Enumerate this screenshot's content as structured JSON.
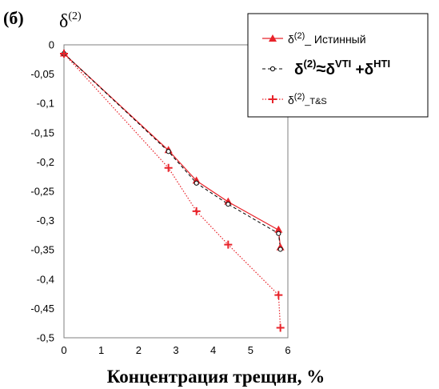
{
  "panel_label": "(б)",
  "chart_data": {
    "type": "line",
    "title": "",
    "ylabel": {
      "base": "δ",
      "sup": "(2)"
    },
    "xlabel": "Концентрация трещин, %",
    "xlim": [
      0,
      6
    ],
    "ylim": [
      -0.5,
      0
    ],
    "x_ticks": [
      "0",
      "1",
      "2",
      "3",
      "4",
      "5",
      "6"
    ],
    "y_ticks": [
      "0",
      "-0,05",
      "-0,1",
      "-0,15",
      "-0,2",
      "-0,25",
      "-0,3",
      "-0,35",
      "-0,4",
      "-0,45",
      "-0,5"
    ],
    "grid": false,
    "legend_position": "top-right",
    "series": [
      {
        "key": "true",
        "legend": {
          "base": "δ",
          "sup": "(2)",
          "rest": "_ Истинный"
        },
        "color": "#e8232a",
        "marker": "triangle",
        "line": "solid",
        "points": [
          [
            0,
            -0.015
          ],
          [
            2.8,
            -0.18
          ],
          [
            3.55,
            -0.232
          ],
          [
            4.4,
            -0.268
          ],
          [
            5.75,
            -0.316
          ],
          [
            5.8,
            -0.346
          ]
        ]
      },
      {
        "key": "approx",
        "legend": {
          "base": "δ",
          "sup": "(2)",
          "approx": "≈",
          "d1": "δ",
          "sup1": "VTI",
          "plus": " +",
          "d2": "δ",
          "sup2": "HTI"
        },
        "color": "#000000",
        "marker": "circle",
        "line": "dashed",
        "points": [
          [
            0,
            -0.015
          ],
          [
            2.8,
            -0.182
          ],
          [
            3.55,
            -0.236
          ],
          [
            4.4,
            -0.272
          ],
          [
            5.75,
            -0.322
          ],
          [
            5.8,
            -0.349
          ]
        ]
      },
      {
        "key": "ts",
        "legend": {
          "base": "δ",
          "sup": "(2)",
          "rest": "_T&S"
        },
        "color": "#e8232a",
        "marker": "plus",
        "line": "dotted",
        "points": [
          [
            0,
            -0.015
          ],
          [
            2.8,
            -0.21
          ],
          [
            3.55,
            -0.284
          ],
          [
            4.4,
            -0.341
          ],
          [
            5.75,
            -0.427
          ],
          [
            5.8,
            -0.483
          ]
        ]
      }
    ]
  }
}
